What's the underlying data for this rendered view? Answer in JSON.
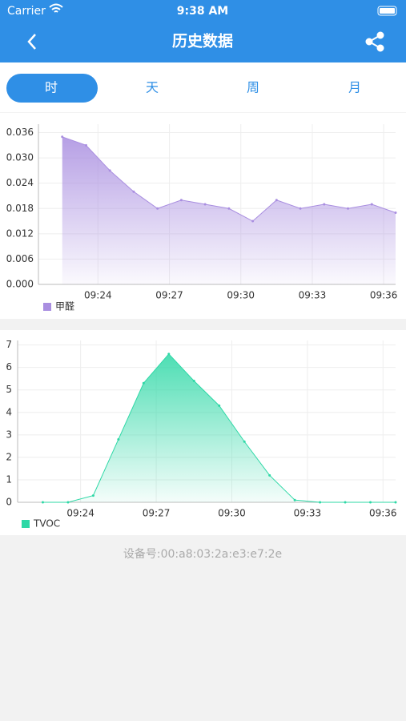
{
  "status_bar": {
    "carrier": "Carrier",
    "time": "9:38 AM"
  },
  "nav": {
    "title": "历史数据"
  },
  "tabs": [
    "时",
    "天",
    "周",
    "月"
  ],
  "chart_data": [
    {
      "type": "area",
      "x": [
        0,
        1,
        2,
        3,
        4,
        5,
        6,
        7,
        8,
        9,
        10,
        11,
        12,
        13,
        14
      ],
      "xlim": [
        -1,
        14
      ],
      "xticks": [
        {
          "value": 1.5,
          "label": "09:24"
        },
        {
          "value": 4.5,
          "label": "09:27"
        },
        {
          "value": 7.5,
          "label": "09:30"
        },
        {
          "value": 10.5,
          "label": "09:33"
        },
        {
          "value": 13.5,
          "label": "09:36"
        }
      ],
      "ylim": [
        0,
        0.038
      ],
      "yticks": [
        {
          "value": 0,
          "label": "0.000"
        },
        0.006,
        0.012,
        0.018,
        0.024,
        {
          "value": 0.03,
          "label": "0.030"
        },
        0.036
      ],
      "grid": true,
      "series": [
        {
          "name": "甲醛",
          "color": "#a98ee0",
          "values": [
            0.035,
            0.033,
            0.027,
            0.022,
            0.018,
            0.02,
            0.019,
            0.018,
            0.015,
            0.02,
            0.018,
            0.019,
            0.018,
            0.019,
            0.017
          ]
        }
      ]
    },
    {
      "type": "area",
      "x": [
        0,
        1,
        2,
        3,
        4,
        5,
        6,
        7,
        8,
        9,
        10,
        11,
        12,
        13,
        14
      ],
      "xlim": [
        -1,
        14
      ],
      "xticks": [
        {
          "value": 1.5,
          "label": "09:24"
        },
        {
          "value": 4.5,
          "label": "09:27"
        },
        {
          "value": 7.5,
          "label": "09:30"
        },
        {
          "value": 10.5,
          "label": "09:33"
        },
        {
          "value": 13.5,
          "label": "09:36"
        }
      ],
      "ylim": [
        0,
        7.2
      ],
      "yticks": [
        0,
        1,
        2,
        3,
        4,
        5,
        6,
        7
      ],
      "grid": true,
      "series": [
        {
          "name": "TVOC",
          "color": "#2ed8a6",
          "values": [
            0,
            0,
            0.3,
            2.8,
            5.3,
            6.6,
            5.4,
            4.3,
            2.7,
            1.2,
            0.1,
            0,
            0,
            0,
            0
          ]
        }
      ]
    }
  ],
  "device_id": "设备号:00:a8:03:2a:e3:e7:2e"
}
